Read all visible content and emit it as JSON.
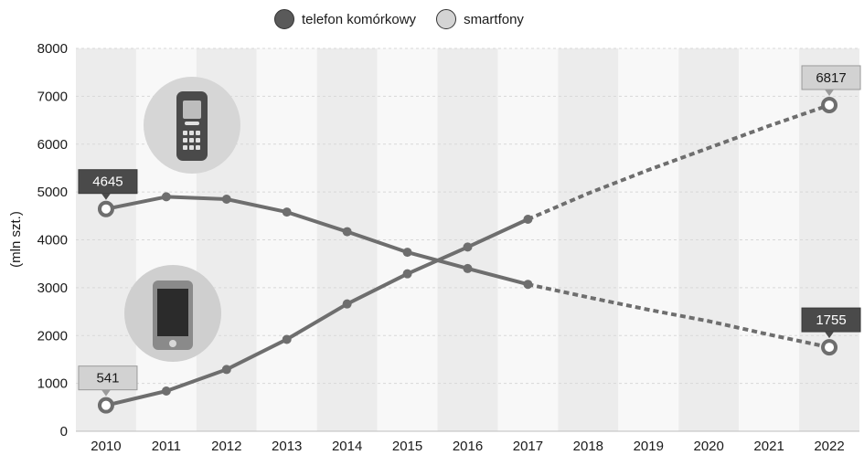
{
  "chart_data": {
    "type": "line",
    "title": "",
    "xlabel": "",
    "ylabel": "(mln szt.)",
    "x": [
      2010,
      2011,
      2012,
      2013,
      2014,
      2015,
      2016,
      2017,
      2018,
      2019,
      2020,
      2021,
      2022
    ],
    "ylim": [
      0,
      8000
    ],
    "yticks": [
      0,
      1000,
      2000,
      3000,
      4000,
      5000,
      6000,
      7000,
      8000
    ],
    "grid": true,
    "legend_position": "top-center",
    "series": [
      {
        "name": "telefon komórkowy",
        "color": "#5a5a5a",
        "values": [
          4645,
          4900,
          4850,
          4580,
          4170,
          3740,
          3400,
          3070,
          2800,
          2540,
          2300,
          2020,
          1755
        ],
        "projected_from": 2017,
        "labeled_points": [
          {
            "x": 2010,
            "label": "4645"
          },
          {
            "x": 2022,
            "label": "1755"
          }
        ],
        "icon": "feature-phone-icon"
      },
      {
        "name": "smartfony",
        "color": "#d4d4d4",
        "values": [
          541,
          840,
          1290,
          1920,
          2660,
          3290,
          3850,
          4430,
          4970,
          5460,
          5920,
          6380,
          6817
        ],
        "projected_from": 2017,
        "labeled_points": [
          {
            "x": 2010,
            "label": "541"
          },
          {
            "x": 2022,
            "label": "6817"
          }
        ],
        "icon": "smartphone-icon"
      }
    ]
  }
}
